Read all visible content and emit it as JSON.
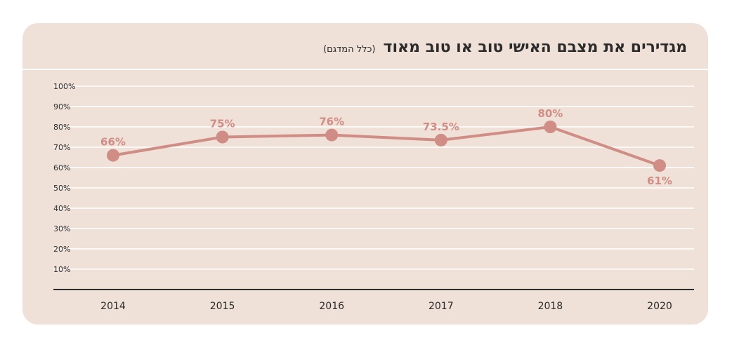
{
  "colors": {
    "background": "#efe0d8",
    "line": "#d08d85",
    "gridline": "#ffffff",
    "axis": "#2b2b2b",
    "text": "#2b2b2b"
  },
  "chart_data": {
    "type": "line",
    "title": "מגדירים את מצבם האישי טוב או טוב מאוד",
    "subtitle": "(כלל המדגם)",
    "xlabel": "",
    "ylabel": "",
    "categories": [
      "2014",
      "2015",
      "2016",
      "2017",
      "2018",
      "2020"
    ],
    "series": [
      {
        "values": [
          66,
          75,
          76,
          73.5,
          80,
          61
        ],
        "labels": [
          "66%",
          "75%",
          "76%",
          "73.5%",
          "80%",
          "61%"
        ]
      }
    ],
    "ylim": [
      0,
      100
    ],
    "yticks": [
      10,
      20,
      30,
      40,
      50,
      60,
      70,
      80,
      90,
      100
    ],
    "ytick_labels": [
      "10%",
      "20%",
      "30%",
      "40%",
      "50%",
      "60%",
      "70%",
      "80%",
      "90%",
      "100%"
    ],
    "grid": true,
    "legend": "none"
  }
}
